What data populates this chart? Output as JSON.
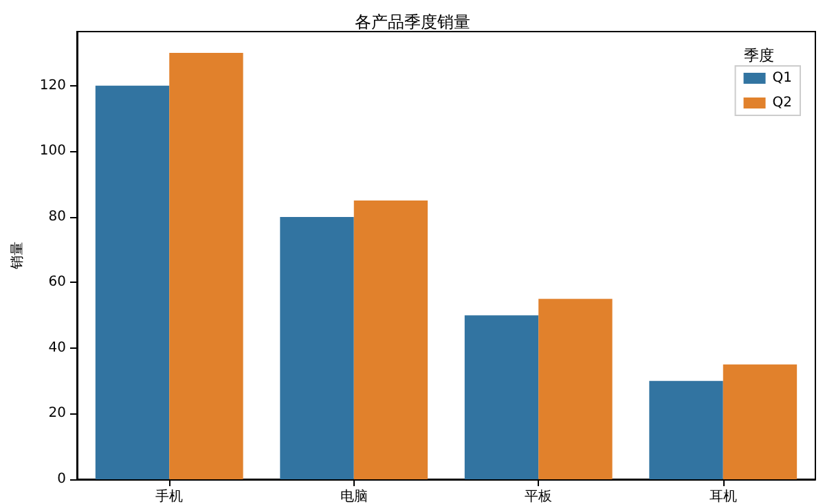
{
  "chart_data": {
    "type": "bar",
    "title": "各产品季度销量",
    "ylabel": "销量",
    "legend_title": "季度",
    "categories": [
      "手机",
      "电脑",
      "平板",
      "耳机"
    ],
    "series": [
      {
        "name": "Q1",
        "color": "#3274a1",
        "values": [
          120,
          80,
          50,
          30
        ]
      },
      {
        "name": "Q2",
        "color": "#e1812c",
        "values": [
          130,
          85,
          55,
          35
        ]
      }
    ],
    "ylim": [
      0,
      136.5
    ],
    "yticks": [
      0,
      20,
      40,
      60,
      80,
      100,
      120
    ],
    "grid": false,
    "legend": "top right"
  }
}
